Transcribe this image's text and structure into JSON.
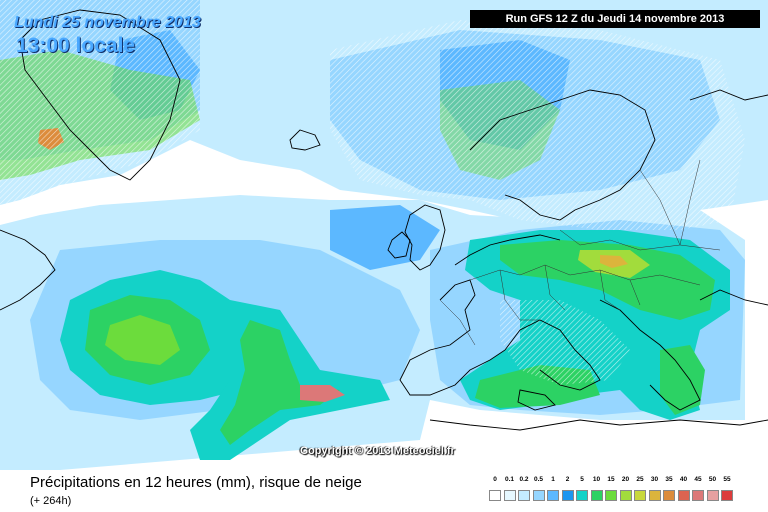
{
  "header": {
    "date": "Lundi 25 novembre 2013",
    "time": "13:00 locale",
    "run": "Run GFS 12 Z du Jeudi 14 novembre 2013"
  },
  "map": {
    "copyright": "Copyright © 2013 Meteociel.fr"
  },
  "footer": {
    "title": "Précipitations en 12 heures (mm), risque de neige",
    "lead": "(+ 264h)"
  },
  "legend": [
    {
      "label": "0",
      "color": "#ffffff"
    },
    {
      "label": "0.1",
      "color": "#e6f8ff"
    },
    {
      "label": "0.2",
      "color": "#c4ecff"
    },
    {
      "label": "0.5",
      "color": "#96d6ff"
    },
    {
      "label": "1",
      "color": "#5cb8ff"
    },
    {
      "label": "2",
      "color": "#1c96f0"
    },
    {
      "label": "5",
      "color": "#14d2c8"
    },
    {
      "label": "10",
      "color": "#2cd264"
    },
    {
      "label": "15",
      "color": "#6cdc3c"
    },
    {
      "label": "20",
      "color": "#a2dc3c"
    },
    {
      "label": "25",
      "color": "#c8d83c"
    },
    {
      "label": "30",
      "color": "#dcb43c"
    },
    {
      "label": "35",
      "color": "#dc8c3c"
    },
    {
      "label": "40",
      "color": "#dc6450"
    },
    {
      "label": "45",
      "color": "#dc7878"
    },
    {
      "label": "50",
      "color": "#e6a0a0"
    },
    {
      "label": "55",
      "color": "#dc3c3c"
    }
  ]
}
